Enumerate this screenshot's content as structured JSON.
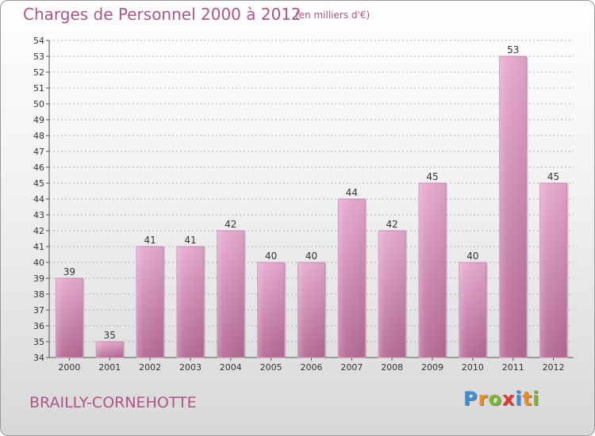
{
  "title": "Charges de Personnel 2000 à 2012",
  "unit_note": "(en milliers d'€)",
  "town": "BRAILLY-CORNEHOTTE",
  "logo": {
    "letters": [
      "P",
      "r",
      "o",
      "x",
      "i",
      "t",
      "i"
    ],
    "colors": [
      "#3a8fd6",
      "#f08c1e",
      "#7cb82f",
      "#e43a2e",
      "#3a8fd6",
      "#f08c1e",
      "#7cb82f"
    ]
  },
  "colors": {
    "bar": "#d98ab8",
    "text": "#ad5586",
    "grid": "#b3b3b3"
  },
  "chart_data": {
    "type": "bar",
    "categories": [
      "2000",
      "2001",
      "2002",
      "2003",
      "2004",
      "2005",
      "2006",
      "2007",
      "2008",
      "2009",
      "2010",
      "2011",
      "2012"
    ],
    "values": [
      39,
      35,
      41,
      41,
      42,
      40,
      40,
      44,
      42,
      45,
      40,
      53,
      45
    ],
    "ylim": [
      34,
      54
    ],
    "yticks": [
      34,
      35,
      36,
      37,
      38,
      39,
      40,
      41,
      42,
      43,
      44,
      45,
      46,
      47,
      48,
      49,
      50,
      51,
      52,
      53,
      54
    ],
    "grid": true,
    "data_labels": true
  }
}
